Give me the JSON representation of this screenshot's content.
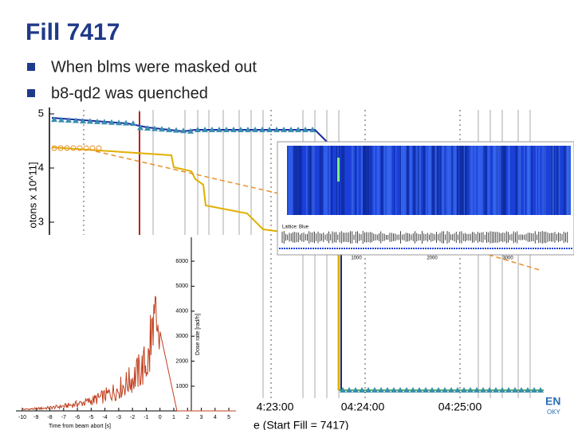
{
  "header": {
    "title": "Fill 7417"
  },
  "bullets": [
    "When blms were masked out",
    "b8-qd2 was quenched"
  ],
  "main_plot": {
    "y_axis_label": "otons x 10^11]",
    "y_ticks": [
      "5",
      "4",
      "3"
    ],
    "x_ticks": [
      "4:23:00",
      "04:24:00",
      "04:25:00"
    ],
    "x_axis_label": "e (Start Fill = 7417)"
  },
  "waterfall_inset": {
    "lattice_label": "Lattice: Blue",
    "lattice_ticks": [
      "1000",
      "2000",
      "3000"
    ]
  },
  "dose_inset": {
    "y_axis_label": "Dose rate [rad/h]",
    "y_ticks": [
      "6000",
      "5000",
      "4000",
      "3000",
      "2000",
      "1000"
    ],
    "x_ticks": [
      "-10",
      "-9",
      "-8",
      "-7",
      "-6",
      "-5",
      "-4",
      "-3",
      "-2",
      "-1",
      "0",
      "1",
      "2",
      "3",
      "4",
      "5"
    ],
    "x_axis_label": "Time from beam abort [s]"
  },
  "logo": [
    "EN",
    "OKY"
  ]
}
